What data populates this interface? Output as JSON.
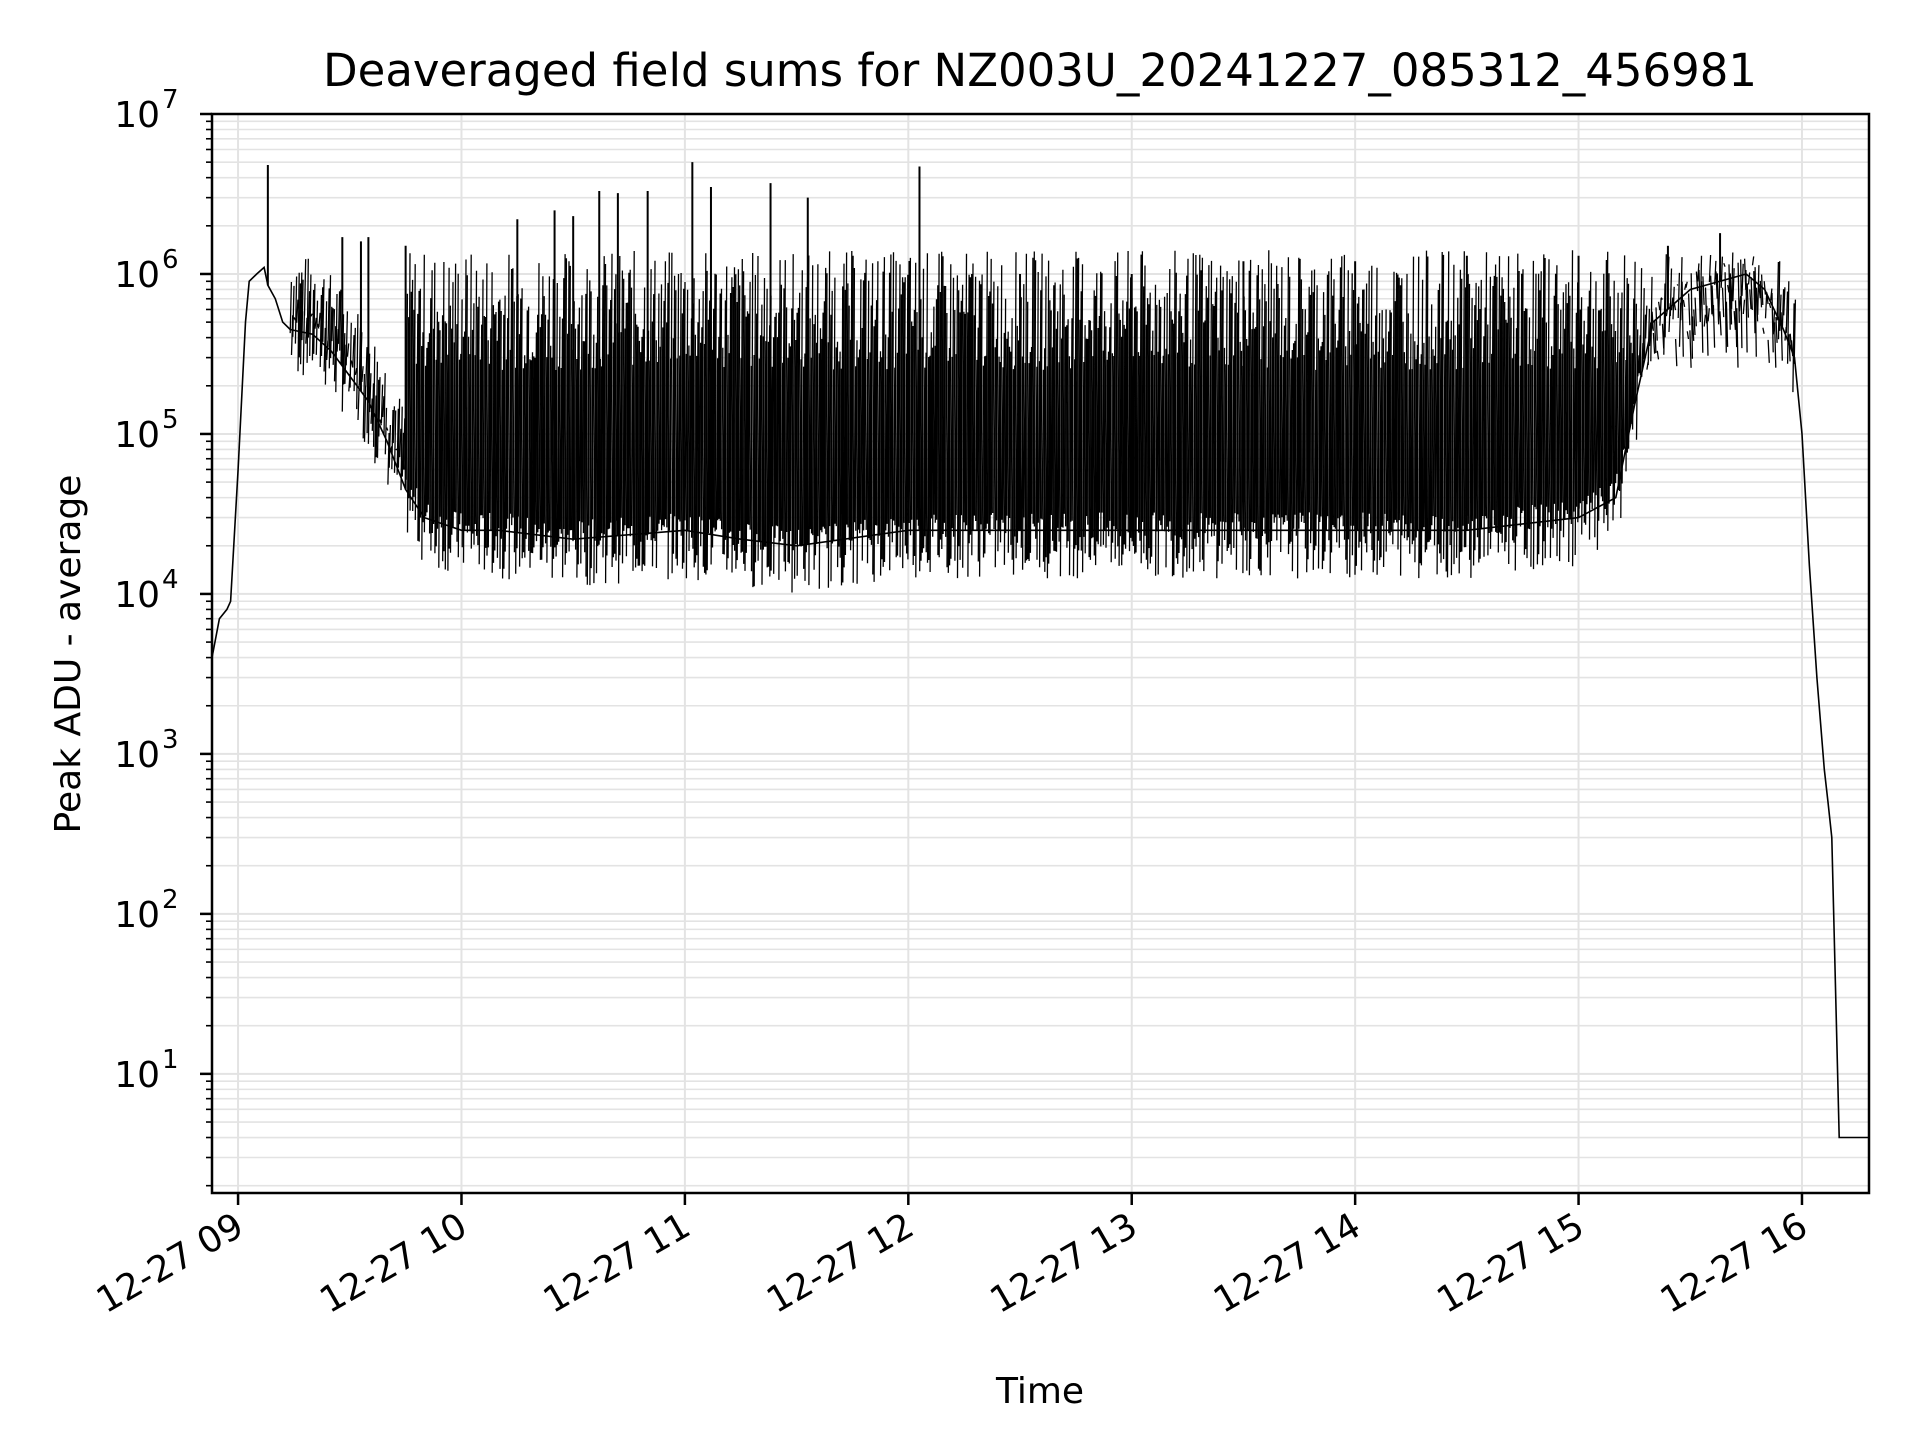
{
  "chart_data": {
    "type": "line",
    "title": "Deaveraged field sums for NZ003U_20241227_085312_456981",
    "xlabel": "Time",
    "ylabel": "Peak ADU - average",
    "yscale": "log",
    "ylim": [
      1.8,
      10000000
    ],
    "xlim": [
      "2024-12-27 08:53",
      "2024-12-27 16:18"
    ],
    "grid": true,
    "x_ticks": [
      "12-27 09",
      "12-27 10",
      "12-27 11",
      "12-27 12",
      "12-27 13",
      "12-27 14",
      "12-27 15",
      "12-27 16"
    ],
    "x_tick_times": [
      "2024-12-27 09:00",
      "2024-12-27 10:00",
      "2024-12-27 11:00",
      "2024-12-27 12:00",
      "2024-12-27 13:00",
      "2024-12-27 14:00",
      "2024-12-27 15:00",
      "2024-12-27 16:00"
    ],
    "y_ticks": [
      {
        "base": "10",
        "exp": "1",
        "value": 10
      },
      {
        "base": "10",
        "exp": "2",
        "value": 100
      },
      {
        "base": "10",
        "exp": "3",
        "value": 1000
      },
      {
        "base": "10",
        "exp": "4",
        "value": 10000
      },
      {
        "base": "10",
        "exp": "5",
        "value": 100000
      },
      {
        "base": "10",
        "exp": "6",
        "value": 1000000
      },
      {
        "base": "10",
        "exp": "7",
        "value": 10000000
      }
    ],
    "series": [
      {
        "color": "#000000",
        "x": [
          "2024-12-27 08:53",
          "2024-12-27 08:55",
          "2024-12-27 08:57",
          "2024-12-27 08:58",
          "2024-12-27 09:00",
          "2024-12-27 09:02",
          "2024-12-27 09:03",
          "2024-12-27 09:05",
          "2024-12-27 09:07",
          "2024-12-27 09:08",
          "2024-12-27 09:10",
          "2024-12-27 09:12",
          "2024-12-27 09:14",
          "2024-12-27 09:20",
          "2024-12-27 09:25",
          "2024-12-27 09:30",
          "2024-12-27 09:35",
          "2024-12-27 09:40",
          "2024-12-27 09:45",
          "2024-12-27 09:50",
          "2024-12-27 10:00",
          "2024-12-27 10:10",
          "2024-12-27 10:30",
          "2024-12-27 11:00",
          "2024-12-27 11:15",
          "2024-12-27 11:30",
          "2024-12-27 12:00",
          "2024-12-27 12:30",
          "2024-12-27 13:00",
          "2024-12-27 13:30",
          "2024-12-27 14:00",
          "2024-12-27 14:30",
          "2024-12-27 15:00",
          "2024-12-27 15:10",
          "2024-12-27 15:15",
          "2024-12-27 15:20",
          "2024-12-27 15:30",
          "2024-12-27 15:45",
          "2024-12-27 15:50",
          "2024-12-27 15:55",
          "2024-12-27 15:58",
          "2024-12-27 16:00",
          "2024-12-27 16:02",
          "2024-12-27 16:04",
          "2024-12-27 16:06",
          "2024-12-27 16:07",
          "2024-12-27 16:08",
          "2024-12-27 16:10",
          "2024-12-27 16:18"
        ],
        "y": [
          4000,
          7000,
          8000,
          9000,
          60000,
          500000,
          900000,
          1000000,
          1100000,
          850000,
          700000,
          500000,
          450000,
          420000,
          330000,
          230000,
          160000,
          90000,
          45000,
          30000,
          25000,
          25000,
          22000,
          25000,
          22000,
          20000,
          25000,
          25000,
          25000,
          25000,
          25000,
          25000,
          30000,
          40000,
          150000,
          500000,
          800000,
          1000000,
          800000,
          450000,
          300000,
          100000,
          15000,
          3000,
          800,
          500,
          300,
          4,
          4
        ]
      }
    ],
    "spikes": {
      "note": "",
      "x": [
        "2024-12-27 09:08",
        "2024-12-27 09:28",
        "2024-12-27 09:33",
        "2024-12-27 09:35",
        "2024-12-27 09:45",
        "2024-12-27 10:15",
        "2024-12-27 10:25",
        "2024-12-27 10:30",
        "2024-12-27 10:37",
        "2024-12-27 10:42",
        "2024-12-27 10:50",
        "2024-12-27 11:02",
        "2024-12-27 11:07",
        "2024-12-27 11:23",
        "2024-12-27 11:33",
        "2024-12-27 12:03",
        "2024-12-27 12:30",
        "2024-12-27 13:00",
        "2024-12-27 13:30",
        "2024-12-27 14:00",
        "2024-12-27 14:30",
        "2024-12-27 15:00",
        "2024-12-27 15:24",
        "2024-12-27 15:38"
      ],
      "y": [
        4800000,
        1700000,
        1600000,
        1700000,
        1500000,
        2200000,
        2500000,
        2300000,
        3300000,
        3200000,
        3300000,
        5000000,
        3500000,
        3700000,
        3000000,
        4700000,
        1000000,
        1000000,
        1200000,
        1200000,
        1300000,
        1300000,
        1500000,
        1800000
      ]
    }
  }
}
